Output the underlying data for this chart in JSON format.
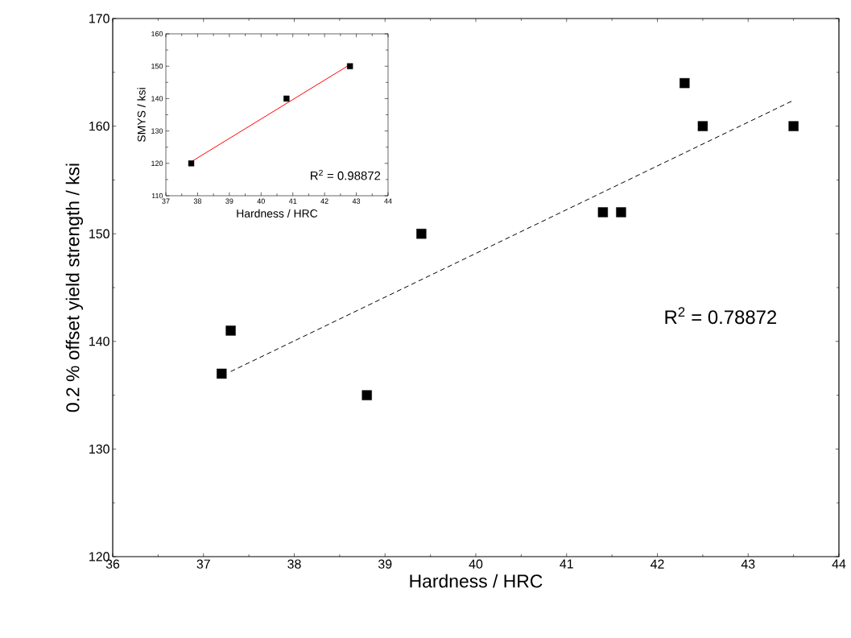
{
  "chart_data": [
    {
      "type": "scatter",
      "xlabel": "Hardness / HRC",
      "ylabel": "0.2 % offset yield strength / ksi",
      "xlim": [
        36,
        44
      ],
      "ylim": [
        120,
        170
      ],
      "xticks": [
        36,
        37,
        38,
        39,
        40,
        41,
        42,
        43,
        44
      ],
      "yticks": [
        120,
        130,
        140,
        150,
        160,
        170
      ],
      "annotations": [
        "R$^{2}$ = 0.78872"
      ],
      "series": [
        {
          "color": "#000000",
          "marker": "square",
          "x": [
            37.2,
            37.3,
            38.8,
            39.4,
            41.4,
            41.6,
            42.3,
            42.5,
            43.5
          ],
          "values": [
            137,
            141,
            135,
            150,
            152,
            152,
            164,
            160,
            160
          ]
        },
        {
          "type": "line",
          "color": "#000000",
          "marker": "none",
          "line_style": "dashed",
          "x": [
            37.3,
            43.5
          ],
          "values": [
            137.2,
            162.4
          ]
        }
      ]
    },
    {
      "type": "scatter",
      "xlabel": "Hardness / HRC",
      "ylabel": "SMYS / ksi",
      "xlim": [
        37,
        44
      ],
      "ylim": [
        110,
        160
      ],
      "xticks": [
        37,
        38,
        39,
        40,
        41,
        42,
        43,
        44
      ],
      "yticks": [
        110,
        120,
        130,
        140,
        150,
        160
      ],
      "annotations": [
        "R$^{2}$ = 0.98872"
      ],
      "series": [
        {
          "color": "#000000",
          "marker": "square",
          "x": [
            37.8,
            40.8,
            42.8
          ],
          "values": [
            120,
            140,
            150
          ]
        },
        {
          "type": "line",
          "color": "#ff0000",
          "marker": "none",
          "line_style": "solid",
          "x": [
            37.8,
            42.8
          ],
          "values": [
            120.5,
            150.5
          ]
        }
      ]
    }
  ]
}
